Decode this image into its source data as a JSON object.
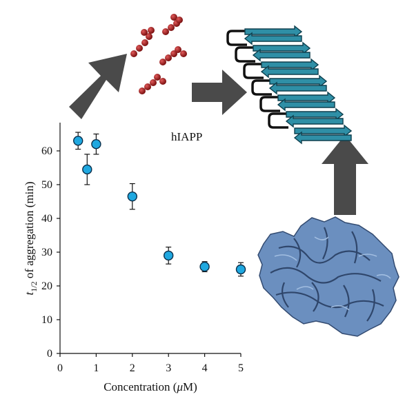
{
  "chart_data": {
    "type": "scatter",
    "title": "",
    "annotation": "hIAPP",
    "xlabel_parts": {
      "main": "Concentration (",
      "greek": "μ",
      "unit": "M)"
    },
    "ylabel_parts": {
      "var": "t",
      "sub": "1/2",
      "rest": " of aggregation (min)"
    },
    "xlim": [
      0,
      5
    ],
    "ylim": [
      0,
      70
    ],
    "x_ticks": [
      "0",
      "1",
      "2",
      "3",
      "4",
      "5"
    ],
    "y_ticks": [
      "0",
      "10",
      "20",
      "30",
      "40",
      "50",
      "60"
    ],
    "grid": false,
    "series": [
      {
        "points": [
          {
            "x": 0.5,
            "y": 63,
            "err": 2.5
          },
          {
            "x": 0.75,
            "y": 54.5,
            "err": 4.5
          },
          {
            "x": 1.0,
            "y": 62,
            "err": 3
          },
          {
            "x": 2.0,
            "y": 46.5,
            "err": 3.8
          },
          {
            "x": 3.0,
            "y": 29,
            "err": 2.5
          },
          {
            "x": 4.0,
            "y": 25.7,
            "err": 1.5
          },
          {
            "x": 5.0,
            "y": 24.9,
            "err": 2
          }
        ]
      }
    ]
  },
  "colors": {
    "marker_fill": "#1fa8e0",
    "marker_stroke": "#0a2e4a",
    "arrow": "#4a4a4a",
    "monomer": "#a51f1f",
    "strand": "#2f8fa6",
    "protein": "#6b8fbf"
  },
  "illustrations": {
    "monomers": "monomer-icon",
    "fibril": "amyloid-fibril-icon",
    "protein": "protein-surface-icon"
  }
}
